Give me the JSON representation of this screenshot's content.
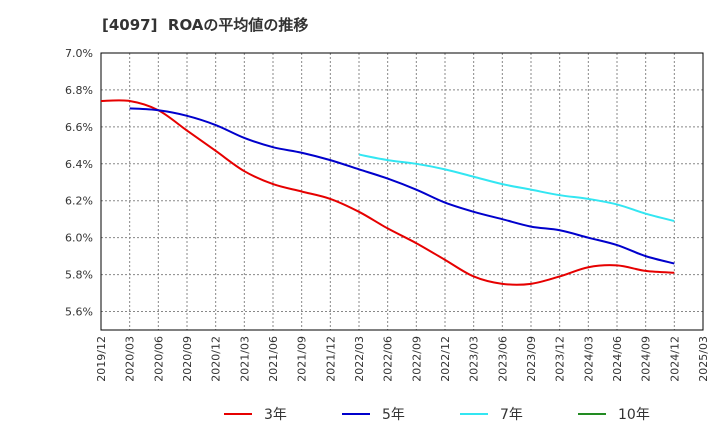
{
  "chart_data": {
    "type": "line",
    "title": "[4097]  ROAの平均値の推移",
    "xlabel": "",
    "ylabel": "",
    "ylim": [
      5.5,
      7.0
    ],
    "yticks": [
      5.6,
      5.8,
      6.0,
      6.2,
      6.4,
      6.6,
      6.8,
      7.0
    ],
    "ytick_labels": [
      "5.6%",
      "5.8%",
      "6.0%",
      "6.2%",
      "6.4%",
      "6.6%",
      "6.8%",
      "7.0%"
    ],
    "x_categories": [
      "2019/12",
      "2020/03",
      "2020/06",
      "2020/09",
      "2020/12",
      "2021/03",
      "2021/06",
      "2021/09",
      "2021/12",
      "2022/03",
      "2022/06",
      "2022/09",
      "2022/12",
      "2023/03",
      "2023/06",
      "2023/09",
      "2023/12",
      "2024/03",
      "2024/06",
      "2024/09",
      "2024/12",
      "2025/03"
    ],
    "grid": true,
    "legend_position": "bottom",
    "series": [
      {
        "name": "3年",
        "color": "#e60000",
        "values": [
          6.74,
          6.74,
          6.69,
          6.58,
          6.47,
          6.36,
          6.29,
          6.25,
          6.21,
          6.14,
          6.05,
          5.97,
          5.88,
          5.79,
          5.75,
          5.75,
          5.79,
          5.84,
          5.85,
          5.82,
          5.81,
          null
        ]
      },
      {
        "name": "5年",
        "color": "#0000cc",
        "values": [
          null,
          6.7,
          6.69,
          6.66,
          6.61,
          6.54,
          6.49,
          6.46,
          6.42,
          6.37,
          6.32,
          6.26,
          6.19,
          6.14,
          6.1,
          6.06,
          6.04,
          6.0,
          5.96,
          5.9,
          5.86,
          null
        ]
      },
      {
        "name": "7年",
        "color": "#33e6f2",
        "values": [
          null,
          null,
          null,
          null,
          null,
          null,
          null,
          null,
          null,
          6.45,
          6.42,
          6.4,
          6.37,
          6.33,
          6.29,
          6.26,
          6.23,
          6.21,
          6.18,
          6.13,
          6.09,
          null
        ]
      },
      {
        "name": "10年",
        "color": "#228b22",
        "values": [
          null,
          null,
          null,
          null,
          null,
          null,
          null,
          null,
          null,
          null,
          null,
          null,
          null,
          null,
          null,
          null,
          null,
          null,
          null,
          null,
          null,
          null
        ]
      }
    ]
  }
}
